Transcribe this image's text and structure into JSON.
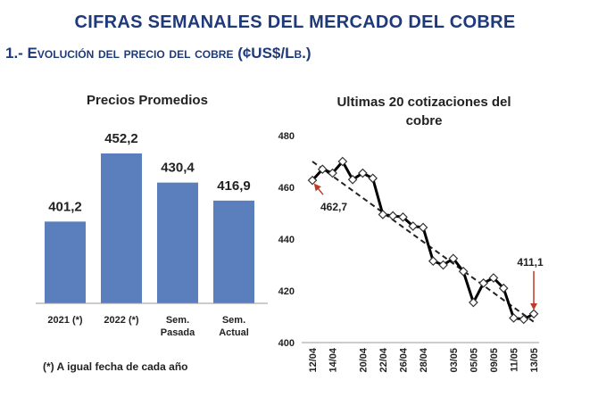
{
  "header": {
    "title": "CIFRAS SEMANALES DEL MERCADO DEL COBRE",
    "subtitle": "1.- Evolución del precio del cobre (¢US$/Lb.)"
  },
  "footnote": "(*) A igual fecha de cada año",
  "chart_data": [
    {
      "type": "bar",
      "title": "Precios Promedios",
      "categories": [
        "2021 (*)",
        "2022 (*)",
        "Sem. Pasada",
        "Sem. Actual"
      ],
      "category_lines": [
        [
          "2021 (*)"
        ],
        [
          "2022 (*)"
        ],
        [
          "Sem.",
          "Pasada"
        ],
        [
          "Sem.",
          "Actual"
        ]
      ],
      "values": [
        401.2,
        452.2,
        430.4,
        416.9
      ],
      "value_labels": [
        "401,2",
        "452,2",
        "430,4",
        "416,9"
      ],
      "ylim": [
        340,
        470
      ],
      "grid": false,
      "bar_color": "#5b7fbd"
    },
    {
      "type": "line",
      "title": "Ultimas 20 cotizaciones del cobre",
      "title_lines": [
        "Ultimas 20 cotizaciones del",
        "cobre"
      ],
      "x": [
        "12/04",
        "13/04",
        "14/04",
        "18/04",
        "19/04",
        "20/04",
        "21/04",
        "22/04",
        "25/04",
        "26/04",
        "27/04",
        "28/04",
        "29/04",
        "02/05",
        "03/05",
        "04/05",
        "05/05",
        "06/05",
        "09/05",
        "10/05",
        "11/05",
        "12/05",
        "13/05"
      ],
      "x_tick_labels": [
        "12/04",
        "14/04",
        "20/04",
        "22/04",
        "26/04",
        "28/04",
        "03/05",
        "05/05",
        "09/05",
        "11/05",
        "13/05"
      ],
      "values": [
        462.7,
        467.0,
        465.5,
        470.0,
        463.0,
        465.5,
        463.5,
        449.5,
        449.0,
        448.5,
        445.0,
        444.5,
        431.5,
        430.0,
        432.5,
        427.5,
        415.5,
        423.0,
        425.0,
        421.0,
        409.5,
        409.0,
        411.1
      ],
      "ylim": [
        400,
        480
      ],
      "yticks": [
        400,
        420,
        440,
        460,
        480
      ],
      "trendline": true,
      "trend_start": 470.0,
      "trend_end": 408.0,
      "annotations": [
        {
          "label": "462,7",
          "value": 462.7,
          "x": "12/04"
        },
        {
          "label": "411,1",
          "value": 411.1,
          "x": "13/05"
        }
      ],
      "line_color": "#000000",
      "arrow_color": "#c0392b"
    }
  ]
}
